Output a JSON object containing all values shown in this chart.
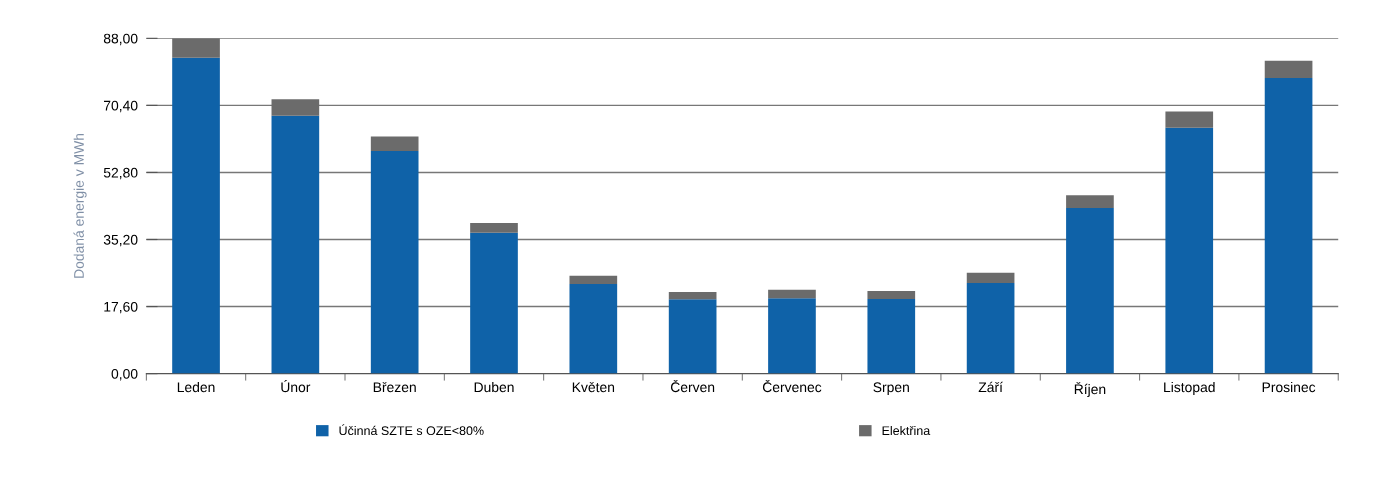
{
  "chart_data": {
    "type": "bar",
    "stacked": true,
    "ylabel": "Dodaná energie v MWh",
    "categories": [
      "Leden",
      "Únor",
      "Březen",
      "Duben",
      "Květen",
      "Červen",
      "Červenec",
      "Srpen",
      "Září",
      "Říjen",
      "Listopad",
      "Prosinec"
    ],
    "series": [
      {
        "name": "Účinná SZTE s OZE<80%",
        "color": "#0f62a8",
        "values": [
          82.9,
          67.7,
          58.4,
          37.0,
          23.5,
          19.5,
          19.8,
          19.6,
          23.8,
          43.5,
          64.5,
          77.6
        ]
      },
      {
        "name": "Elektřina",
        "color": "#6b6b6b",
        "values": [
          5.1,
          4.3,
          3.8,
          2.5,
          2.2,
          1.9,
          2.2,
          2.1,
          2.7,
          3.3,
          4.3,
          4.5
        ]
      }
    ],
    "ylim": [
      0,
      88
    ],
    "yticks": [
      {
        "value": 0,
        "label": "0,00"
      },
      {
        "value": 17.6,
        "label": "17,60"
      },
      {
        "value": 35.2,
        "label": "35,20"
      },
      {
        "value": 52.8,
        "label": "52,80"
      },
      {
        "value": 70.4,
        "label": "70,40"
      },
      {
        "value": 88,
        "label": "88,00"
      }
    ],
    "grid": "y",
    "legend": "bottom"
  }
}
